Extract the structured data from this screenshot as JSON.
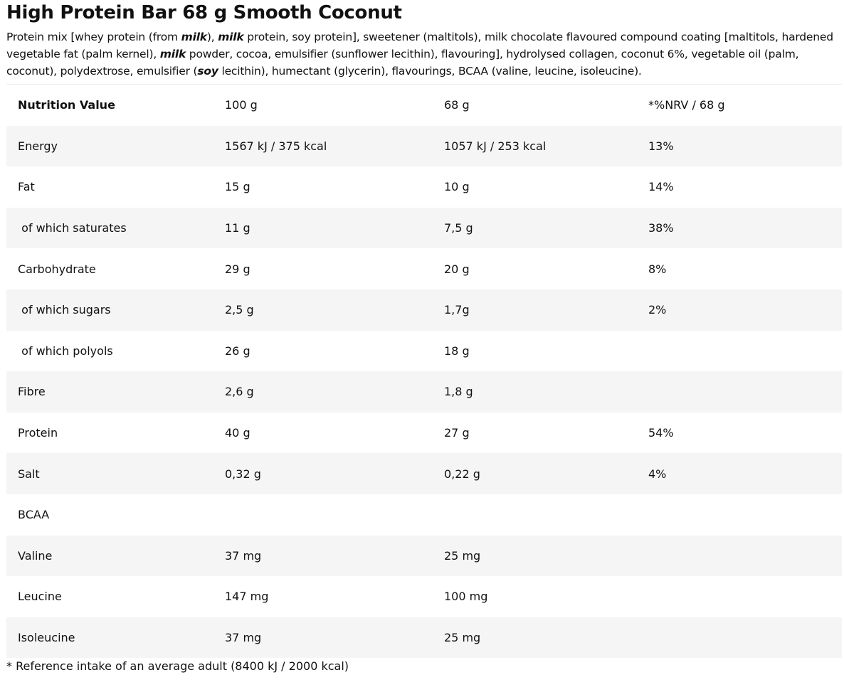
{
  "title": "High Protein Bar 68 g Smooth Coconut",
  "ingredients": [
    {
      "text": "Protein mix [whey protein (from "
    },
    {
      "allergen": "milk"
    },
    {
      "text": "), "
    },
    {
      "allergen": "milk"
    },
    {
      "text": " protein, soy protein], sweetener (maltitols), milk chocolate flavoured compound coating [maltitols, hardened vegetable fat (palm kernel), "
    },
    {
      "allergen": "milk"
    },
    {
      "text": " powder, cocoa, emulsifier (sunflower lecithin), flavouring], hydrolysed collagen, coconut 6%, vegetable oil (palm, coconut), polydextrose, emulsifier ("
    },
    {
      "allergen": "soy"
    },
    {
      "text": " lecithin), humectant (glycerin), flavourings, BCAA (valine, leucine, isoleucine)."
    }
  ],
  "table": {
    "header": [
      "Nutrition Value",
      "100 g",
      "68 g",
      "*%NRV / 68 g"
    ],
    "rows": [
      [
        "Energy",
        "1567 kJ / 375 kcal",
        "1057 kJ / 253 kcal",
        "13%"
      ],
      [
        "Fat",
        "15 g",
        "10 g",
        "14%"
      ],
      [
        " of which saturates",
        "11 g",
        "7,5 g",
        "38%"
      ],
      [
        "Carbohydrate",
        "29 g",
        "20 g",
        "8%"
      ],
      [
        " of which sugars",
        "2,5 g",
        "1,7g",
        "2%"
      ],
      [
        " of which polyols",
        "26 g",
        "18 g"
      ],
      [
        "Fibre",
        "2,6 g",
        "1,8 g"
      ],
      [
        "Protein",
        "40 g",
        "27 g",
        "54%"
      ],
      [
        "Salt",
        "0,32 g",
        "0,22 g",
        "4%"
      ],
      [
        "BCAA"
      ],
      [
        "Valine",
        "37 mg",
        "25 mg"
      ],
      [
        "Leucine",
        "147 mg",
        "100 mg"
      ],
      [
        "Isoleucine",
        "37 mg",
        "25 mg"
      ]
    ]
  },
  "footnote": "* Reference intake of an average adult (8400 kJ / 2000 kcal)"
}
